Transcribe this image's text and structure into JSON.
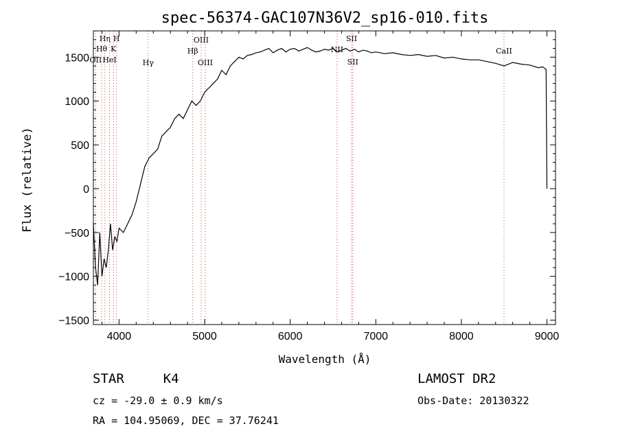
{
  "chart_data": {
    "type": "line",
    "title": "spec-56374-GAC107N36V2_sp16-010.fits",
    "xlabel": "Wavelength (Å)",
    "ylabel": "Flux (relative)",
    "xlim": [
      3700,
      9100
    ],
    "ylim": [
      -1550,
      1800
    ],
    "x_ticks": [
      4000,
      5000,
      6000,
      7000,
      8000,
      9000
    ],
    "y_ticks": [
      -1500,
      -1000,
      -500,
      0,
      500,
      1000,
      1500
    ],
    "grid": false,
    "series": [
      {
        "x": [
          3700,
          3725,
          3750,
          3775,
          3800,
          3825,
          3850,
          3875,
          3900,
          3925,
          3950,
          3975,
          4000,
          4050,
          4100,
          4150,
          4200,
          4250,
          4300,
          4350,
          4400,
          4450,
          4500,
          4550,
          4600,
          4650,
          4700,
          4750,
          4800,
          4850,
          4900,
          4950,
          5000,
          5050,
          5100,
          5150,
          5200,
          5250,
          5300,
          5350,
          5400,
          5450,
          5500,
          5550,
          5600,
          5650,
          5700,
          5750,
          5800,
          5850,
          5900,
          5950,
          6000,
          6050,
          6100,
          6150,
          6200,
          6250,
          6300,
          6350,
          6400,
          6450,
          6500,
          6550,
          6600,
          6650,
          6700,
          6750,
          6800,
          6850,
          6900,
          6950,
          7000,
          7100,
          7200,
          7300,
          7400,
          7500,
          7600,
          7700,
          7800,
          7900,
          8000,
          8100,
          8200,
          8300,
          8400,
          8500,
          8600,
          8700,
          8800,
          8900,
          8950,
          8990,
          9000
        ],
        "y": [
          -400,
          -900,
          -1100,
          -500,
          -1000,
          -800,
          -900,
          -700,
          -400,
          -700,
          -550,
          -600,
          -450,
          -500,
          -400,
          -300,
          -150,
          50,
          250,
          350,
          400,
          450,
          600,
          650,
          700,
          800,
          850,
          800,
          900,
          1000,
          950,
          1000,
          1100,
          1150,
          1200,
          1250,
          1350,
          1300,
          1400,
          1450,
          1500,
          1480,
          1520,
          1530,
          1550,
          1560,
          1580,
          1600,
          1550,
          1580,
          1600,
          1560,
          1590,
          1600,
          1570,
          1590,
          1610,
          1580,
          1560,
          1570,
          1590,
          1580,
          1600,
          1560,
          1580,
          1600,
          1570,
          1590,
          1560,
          1580,
          1570,
          1550,
          1560,
          1540,
          1550,
          1530,
          1520,
          1530,
          1510,
          1520,
          1490,
          1500,
          1480,
          1470,
          1470,
          1450,
          1430,
          1400,
          1440,
          1420,
          1410,
          1380,
          1390,
          1360,
          0
        ]
      }
    ],
    "line_markers": [
      {
        "label": "OII",
        "x": 3727
      },
      {
        "label": "Hθ",
        "x": 3797
      },
      {
        "label": "Hη",
        "x": 3835
      },
      {
        "label": "HeI",
        "x": 3889
      },
      {
        "label": "K",
        "x": 3934
      },
      {
        "label": "H",
        "x": 3969
      },
      {
        "label": "Hγ",
        "x": 4340
      },
      {
        "label": "Hβ",
        "x": 4861
      },
      {
        "label": "OIII",
        "x": 4959
      },
      {
        "label": "OIII",
        "x": 5007
      },
      {
        "label": "NII",
        "x": 6548
      },
      {
        "label": "SII",
        "x": 6717
      },
      {
        "label": "SII",
        "x": 6731
      },
      {
        "label": "CaII",
        "x": 8498
      }
    ]
  },
  "info": {
    "class_label": "STAR",
    "subclass_label": "K4",
    "cz_text": "cz = -29.0 ± 0.9 km/s",
    "radec_text": "RA = 104.95069, DEC =  37.76241",
    "survey_label": "LAMOST DR2",
    "obs_date_text": "Obs-Date: 20130322"
  }
}
